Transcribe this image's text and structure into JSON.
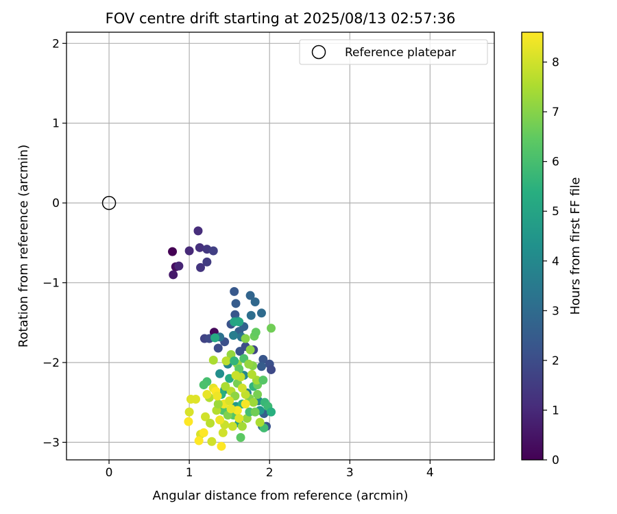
{
  "chart_data": {
    "type": "scatter",
    "title": "FOV centre drift starting at 2025/08/13 02:57:36",
    "xlabel": "Angular distance from reference (arcmin)",
    "ylabel": "Rotation from reference (arcmin)",
    "xlim": [
      -0.53,
      4.8
    ],
    "ylim": [
      -3.22,
      2.14
    ],
    "xticks": [
      0,
      1,
      2,
      3,
      4
    ],
    "xtick_labels": [
      "0",
      "1",
      "2",
      "3",
      "4"
    ],
    "yticks": [
      -3,
      -2,
      -1,
      0,
      1,
      2
    ],
    "ytick_labels": [
      "−3",
      "−2",
      "−1",
      "0",
      "1",
      "2"
    ],
    "grid": true,
    "legend": {
      "position": "top-right",
      "entries": [
        "Reference platepar"
      ]
    },
    "reference_point": {
      "name": "Reference platepar",
      "x": 0,
      "y": 0,
      "marker": "open-circle"
    },
    "colorbar": {
      "label": "Hours from first FF file",
      "range": [
        0,
        8.6
      ],
      "ticks": [
        0,
        1,
        2,
        3,
        4,
        5,
        6,
        7,
        8
      ],
      "tick_labels": [
        "0",
        "1",
        "2",
        "3",
        "4",
        "5",
        "6",
        "7",
        "8"
      ],
      "colormap": "viridis"
    },
    "series": [
      {
        "points": [
          {
            "x": 0.79,
            "y": -0.61,
            "c": 0.0
          },
          {
            "x": 0.83,
            "y": -0.8,
            "c": 0.3
          },
          {
            "x": 0.8,
            "y": -0.9,
            "c": 0.6
          },
          {
            "x": 0.87,
            "y": -0.79,
            "c": 0.9
          },
          {
            "x": 1.0,
            "y": -0.6,
            "c": 1.0
          },
          {
            "x": 1.11,
            "y": -0.35,
            "c": 1.1
          },
          {
            "x": 1.13,
            "y": -0.56,
            "c": 1.2
          },
          {
            "x": 1.14,
            "y": -0.81,
            "c": 1.3
          },
          {
            "x": 1.22,
            "y": -0.58,
            "c": 1.4
          },
          {
            "x": 1.22,
            "y": -0.74,
            "c": 1.5
          },
          {
            "x": 1.3,
            "y": -0.6,
            "c": 1.6
          },
          {
            "x": 1.31,
            "y": -1.62,
            "c": 0.2
          },
          {
            "x": 1.19,
            "y": -1.7,
            "c": 1.7
          },
          {
            "x": 1.25,
            "y": -1.7,
            "c": 1.9
          },
          {
            "x": 1.36,
            "y": -1.82,
            "c": 2.0
          },
          {
            "x": 1.44,
            "y": -1.74,
            "c": 2.1
          },
          {
            "x": 1.52,
            "y": -1.52,
            "c": 2.2
          },
          {
            "x": 1.57,
            "y": -1.4,
            "c": 2.3
          },
          {
            "x": 1.56,
            "y": -1.11,
            "c": 2.4
          },
          {
            "x": 1.58,
            "y": -1.26,
            "c": 2.5
          },
          {
            "x": 1.62,
            "y": -1.61,
            "c": 2.6
          },
          {
            "x": 1.68,
            "y": -1.55,
            "c": 2.7
          },
          {
            "x": 1.76,
            "y": -1.16,
            "c": 2.8
          },
          {
            "x": 1.82,
            "y": -1.24,
            "c": 2.9
          },
          {
            "x": 1.9,
            "y": -1.38,
            "c": 3.0
          },
          {
            "x": 1.77,
            "y": -1.41,
            "c": 3.1
          },
          {
            "x": 1.63,
            "y": -1.86,
            "c": 2.2
          },
          {
            "x": 1.7,
            "y": -1.8,
            "c": 2.0
          },
          {
            "x": 1.8,
            "y": -1.84,
            "c": 1.8
          },
          {
            "x": 1.92,
            "y": -1.96,
            "c": 2.3
          },
          {
            "x": 2.0,
            "y": -2.02,
            "c": 2.1
          },
          {
            "x": 2.02,
            "y": -2.09,
            "c": 1.9
          },
          {
            "x": 1.9,
            "y": -2.05,
            "c": 2.5
          },
          {
            "x": 1.93,
            "y": -2.64,
            "c": 2.6
          },
          {
            "x": 1.91,
            "y": -2.8,
            "c": 2.8
          },
          {
            "x": 1.96,
            "y": -2.8,
            "c": 2.2
          },
          {
            "x": 1.38,
            "y": -1.68,
            "c": 3.2
          },
          {
            "x": 1.6,
            "y": -1.48,
            "c": 3.4
          },
          {
            "x": 1.65,
            "y": -1.68,
            "c": 3.3
          },
          {
            "x": 1.55,
            "y": -1.66,
            "c": 3.6
          },
          {
            "x": 1.48,
            "y": -2.02,
            "c": 3.8
          },
          {
            "x": 1.38,
            "y": -2.14,
            "c": 4.2
          },
          {
            "x": 1.44,
            "y": -2.34,
            "c": 4.4
          },
          {
            "x": 1.68,
            "y": -2.16,
            "c": 4.0
          },
          {
            "x": 1.72,
            "y": -2.38,
            "c": 3.7
          },
          {
            "x": 1.86,
            "y": -2.48,
            "c": 3.9
          },
          {
            "x": 1.88,
            "y": -2.6,
            "c": 4.5
          },
          {
            "x": 1.58,
            "y": -2.55,
            "c": 4.6
          },
          {
            "x": 1.62,
            "y": -2.76,
            "c": 4.8
          },
          {
            "x": 1.56,
            "y": -1.49,
            "c": 5.0
          },
          {
            "x": 1.62,
            "y": -1.49,
            "c": 5.1
          },
          {
            "x": 1.32,
            "y": -1.69,
            "c": 5.2
          },
          {
            "x": 1.5,
            "y": -2.2,
            "c": 5.3
          },
          {
            "x": 1.4,
            "y": -2.4,
            "c": 5.4
          },
          {
            "x": 1.66,
            "y": -2.52,
            "c": 5.5
          },
          {
            "x": 1.8,
            "y": -2.3,
            "c": 5.6
          },
          {
            "x": 1.94,
            "y": -2.5,
            "c": 5.7
          },
          {
            "x": 1.98,
            "y": -2.55,
            "c": 5.8
          },
          {
            "x": 2.02,
            "y": -2.62,
            "c": 5.4
          },
          {
            "x": 1.93,
            "y": -2.82,
            "c": 5.9
          },
          {
            "x": 1.22,
            "y": -2.24,
            "c": 6.0
          },
          {
            "x": 1.18,
            "y": -2.28,
            "c": 6.1
          },
          {
            "x": 1.42,
            "y": -2.6,
            "c": 6.2
          },
          {
            "x": 1.55,
            "y": -2.66,
            "c": 6.3
          },
          {
            "x": 1.64,
            "y": -2.94,
            "c": 6.4
          },
          {
            "x": 1.81,
            "y": -1.67,
            "c": 6.6
          },
          {
            "x": 2.02,
            "y": -1.57,
            "c": 6.7
          },
          {
            "x": 1.83,
            "y": -1.62,
            "c": 6.5
          },
          {
            "x": 1.6,
            "y": -2.26,
            "c": 6.8
          },
          {
            "x": 1.75,
            "y": -2.45,
            "c": 6.9
          },
          {
            "x": 1.85,
            "y": -2.28,
            "c": 6.6
          },
          {
            "x": 1.7,
            "y": -1.7,
            "c": 7.0
          },
          {
            "x": 1.76,
            "y": -1.84,
            "c": 7.1
          },
          {
            "x": 1.52,
            "y": -1.9,
            "c": 7.2
          },
          {
            "x": 1.6,
            "y": -2.02,
            "c": 7.3
          },
          {
            "x": 1.79,
            "y": -2.04,
            "c": 7.0
          },
          {
            "x": 1.84,
            "y": -2.22,
            "c": 7.4
          },
          {
            "x": 1.72,
            "y": -2.7,
            "c": 7.2
          },
          {
            "x": 1.8,
            "y": -2.5,
            "c": 7.3
          },
          {
            "x": 1.88,
            "y": -2.75,
            "c": 7.5
          },
          {
            "x": 1.3,
            "y": -1.97,
            "c": 7.5
          },
          {
            "x": 1.25,
            "y": -2.44,
            "c": 7.6
          },
          {
            "x": 1.34,
            "y": -2.6,
            "c": 7.6
          },
          {
            "x": 1.46,
            "y": -1.98,
            "c": 7.7
          },
          {
            "x": 1.52,
            "y": -2.36,
            "c": 7.7
          },
          {
            "x": 1.64,
            "y": -2.18,
            "c": 7.8
          },
          {
            "x": 1.7,
            "y": -2.4,
            "c": 7.8
          },
          {
            "x": 1.54,
            "y": -2.8,
            "c": 7.9
          },
          {
            "x": 1.44,
            "y": -2.78,
            "c": 7.9
          },
          {
            "x": 1.42,
            "y": -2.88,
            "c": 8.0
          },
          {
            "x": 1.28,
            "y": -2.99,
            "c": 8.0
          },
          {
            "x": 1.2,
            "y": -2.68,
            "c": 8.0
          },
          {
            "x": 1.14,
            "y": -2.9,
            "c": 8.1
          },
          {
            "x": 1.0,
            "y": -2.62,
            "c": 8.1
          },
          {
            "x": 1.02,
            "y": -2.46,
            "c": 8.2
          },
          {
            "x": 1.08,
            "y": -2.46,
            "c": 8.2
          },
          {
            "x": 1.22,
            "y": -2.4,
            "c": 8.3
          },
          {
            "x": 1.3,
            "y": -2.32,
            "c": 8.3
          },
          {
            "x": 1.38,
            "y": -2.72,
            "c": 8.4
          },
          {
            "x": 1.43,
            "y": -2.52,
            "c": 8.4
          },
          {
            "x": 1.6,
            "y": -2.6,
            "c": 8.5
          },
          {
            "x": 1.7,
            "y": -2.52,
            "c": 8.5
          },
          {
            "x": 0.99,
            "y": -2.74,
            "c": 8.6
          },
          {
            "x": 1.12,
            "y": -2.98,
            "c": 8.6
          },
          {
            "x": 1.4,
            "y": -3.05,
            "c": 8.6
          },
          {
            "x": 1.18,
            "y": -2.88,
            "c": 8.6
          },
          {
            "x": 1.33,
            "y": -2.36,
            "c": 8.6
          },
          {
            "x": 1.66,
            "y": -2.8,
            "c": 7.4
          },
          {
            "x": 1.57,
            "y": -2.42,
            "c": 7.1
          },
          {
            "x": 1.48,
            "y": -2.66,
            "c": 6.9
          },
          {
            "x": 1.75,
            "y": -2.62,
            "c": 6.0
          },
          {
            "x": 1.85,
            "y": -2.4,
            "c": 6.8
          },
          {
            "x": 1.62,
            "y": -2.08,
            "c": 6.4
          },
          {
            "x": 1.68,
            "y": -1.95,
            "c": 6.1
          },
          {
            "x": 1.56,
            "y": -1.98,
            "c": 5.6
          },
          {
            "x": 1.36,
            "y": -2.52,
            "c": 7.3
          },
          {
            "x": 1.26,
            "y": -2.76,
            "c": 7.7
          },
          {
            "x": 1.5,
            "y": -2.48,
            "c": 8.1
          },
          {
            "x": 1.45,
            "y": -2.3,
            "c": 7.5
          },
          {
            "x": 1.78,
            "y": -2.15,
            "c": 7.6
          },
          {
            "x": 1.92,
            "y": -2.22,
            "c": 6.3
          },
          {
            "x": 1.66,
            "y": -2.32,
            "c": 8.0
          },
          {
            "x": 1.58,
            "y": -2.16,
            "c": 7.9
          },
          {
            "x": 1.74,
            "y": -2.02,
            "c": 7.2
          },
          {
            "x": 1.52,
            "y": -2.58,
            "c": 8.3
          },
          {
            "x": 1.35,
            "y": -2.42,
            "c": 8.4
          },
          {
            "x": 1.62,
            "y": -2.7,
            "c": 8.2
          },
          {
            "x": 1.82,
            "y": -2.62,
            "c": 6.7
          }
        ]
      }
    ]
  }
}
